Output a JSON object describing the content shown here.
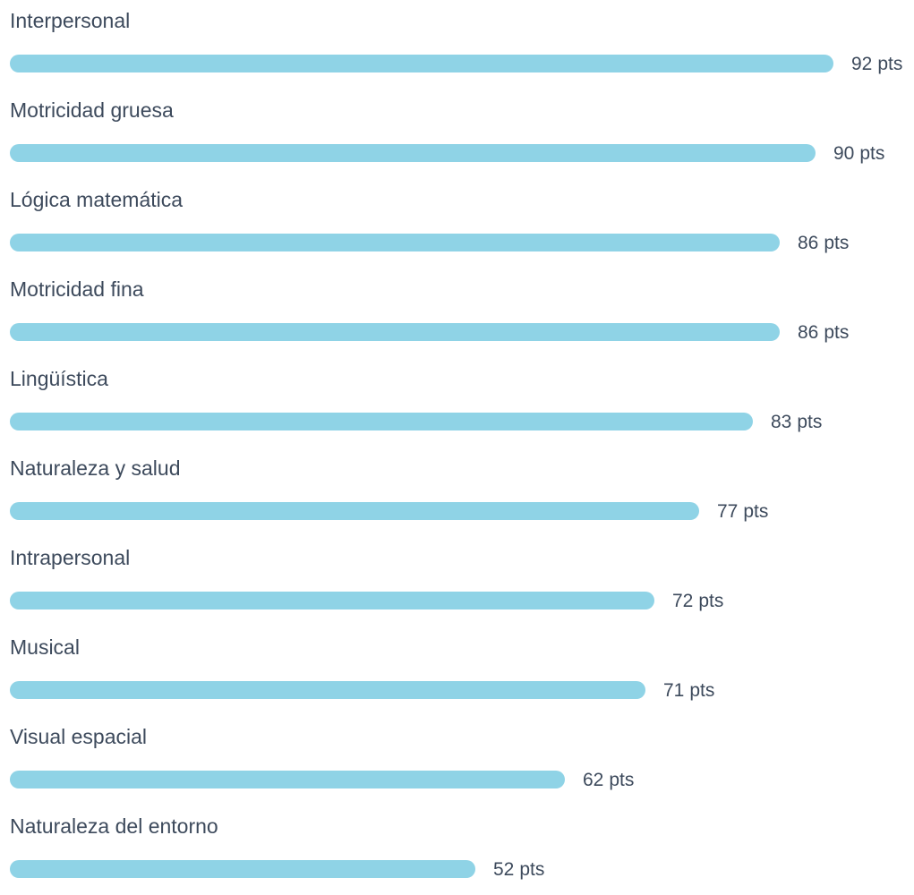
{
  "chart_data": {
    "type": "bar",
    "orientation": "horizontal",
    "categories": [
      "Interpersonal",
      "Motricidad gruesa",
      "Lógica matemática",
      "Motricidad fina",
      "Lingüística",
      "Naturaleza y salud",
      "Intrapersonal",
      "Musical",
      "Visual espacial",
      "Naturaleza del entorno"
    ],
    "values": [
      92,
      90,
      86,
      86,
      83,
      77,
      72,
      71,
      62,
      52
    ],
    "unit": "pts",
    "bar_color": "#8fd3e6",
    "text_color": "#3d4a5c",
    "title": "",
    "xlabel": "",
    "ylabel": "",
    "grid": false,
    "legend": "none"
  }
}
